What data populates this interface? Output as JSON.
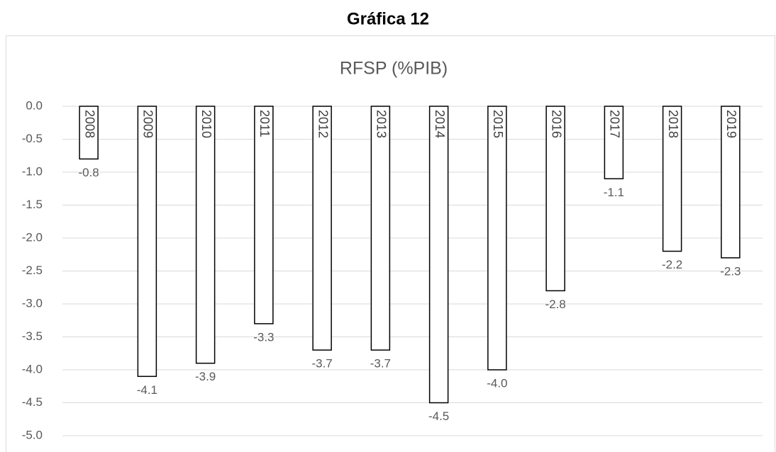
{
  "heading": "Gráfica 12",
  "chart_data": {
    "type": "bar",
    "title": "RFSP (%PIB)",
    "categories": [
      "2008",
      "2009",
      "2010",
      "2011",
      "2012",
      "2013",
      "2014",
      "2015",
      "2016",
      "2017",
      "2018",
      "2019"
    ],
    "values": [
      -0.8,
      -4.1,
      -3.9,
      -3.3,
      -3.7,
      -3.7,
      -4.5,
      -4.0,
      -2.8,
      -1.1,
      -2.2,
      -2.3
    ],
    "value_labels": [
      "-0.8",
      "-4.1",
      "-3.9",
      "-3.3",
      "-3.7",
      "-3.7",
      "-4.5",
      "-4.0",
      "-2.8",
      "-1.1",
      "-2.2",
      "-2.3"
    ],
    "color": "#ffffff",
    "ylim": [
      -5,
      0
    ],
    "yticks": [
      {
        "value": 0,
        "label": "0.0"
      },
      -0.5,
      {
        "value": -1,
        "label": "-1.0"
      },
      -1.5,
      {
        "value": -2,
        "label": "-2.0"
      },
      -2.5,
      {
        "value": -3,
        "label": "-3.0"
      },
      -3.5,
      {
        "value": -4,
        "label": "-4.0"
      },
      -4.5,
      {
        "value": -5,
        "label": "-5.0"
      }
    ],
    "grid": true
  }
}
